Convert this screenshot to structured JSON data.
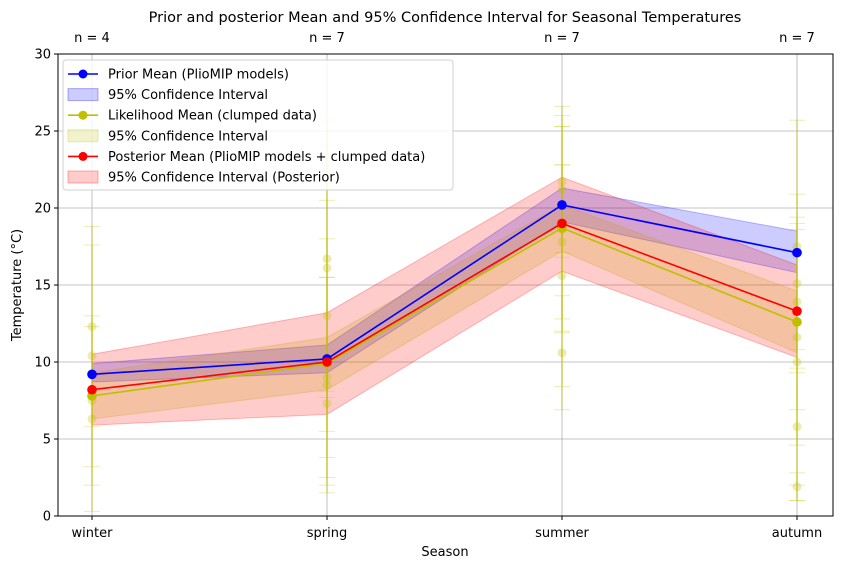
{
  "chart_data": {
    "type": "line",
    "title": "Prior and posterior Mean and 95% Confidence Interval for Seasonal Temperatures",
    "xlabel": "Season",
    "ylabel": "Temperature (°C)",
    "categories": [
      "winter",
      "spring",
      "summer",
      "autumn"
    ],
    "top_labels": [
      "n = 4",
      "n = 7",
      "n = 7",
      "n = 7"
    ],
    "ylim": [
      0,
      30
    ],
    "yticks": [
      0,
      5,
      10,
      15,
      20,
      25,
      30
    ],
    "grid": true,
    "legend_position": "top-left",
    "series": [
      {
        "name": "Prior Mean (PlioMIP models)",
        "color": "#0000ff",
        "values": [
          9.2,
          10.2,
          20.2,
          17.1
        ],
        "ci_name": "95% Confidence Interval",
        "ci_lower": [
          8.7,
          9.3,
          19.1,
          15.8
        ],
        "ci_upper": [
          9.9,
          11.1,
          21.3,
          18.5
        ]
      },
      {
        "name": "Likelihood Mean (clumped data)",
        "color": "#bfbf00",
        "values": [
          7.8,
          9.9,
          18.7,
          12.6
        ],
        "ci_name": "95% Confidence Interval",
        "ci_lower": [
          6.3,
          8.2,
          17.2,
          10.6
        ],
        "ci_upper": [
          9.3,
          11.6,
          20.2,
          14.6
        ]
      },
      {
        "name": "Posterior Mean (PlioMIP models + clumped data)",
        "color": "#ff0000",
        "values": [
          8.2,
          10.0,
          19.0,
          13.3
        ],
        "ci_name": "95% Confidence Interval (Posterior)",
        "ci_lower": [
          5.9,
          6.6,
          15.9,
          10.3
        ],
        "ci_upper": [
          10.5,
          13.2,
          22.0,
          16.3
        ]
      }
    ],
    "raw_points": [
      {
        "category": "winter",
        "values": [
          12.3,
          10.4,
          6.3,
          7.5
        ],
        "errors": [
          6.5,
          7.2,
          6.0,
          5.5
        ]
      },
      {
        "category": "spring",
        "values": [
          16.7,
          16.1,
          13.0,
          10.0,
          9.0,
          8.5,
          7.3
        ],
        "errors": [
          9.0,
          8.0,
          7.5,
          8.0,
          6.5,
          7.0,
          3.5
        ]
      },
      {
        "category": "summer",
        "values": [
          21.7,
          21.2,
          19.0,
          18.6,
          17.8,
          15.6,
          10.6
        ],
        "errors": [
          4.9,
          4.1,
          7.0,
          6.7,
          5.0,
          7.2,
          3.7
        ]
      },
      {
        "category": "autumn",
        "values": [
          17.5,
          15.1,
          13.9,
          11.6,
          10.0,
          5.8,
          1.9
        ],
        "errors": [
          8.2,
          4.3,
          7.0,
          7.0,
          9.0,
          3.8,
          0.9
        ]
      }
    ]
  }
}
